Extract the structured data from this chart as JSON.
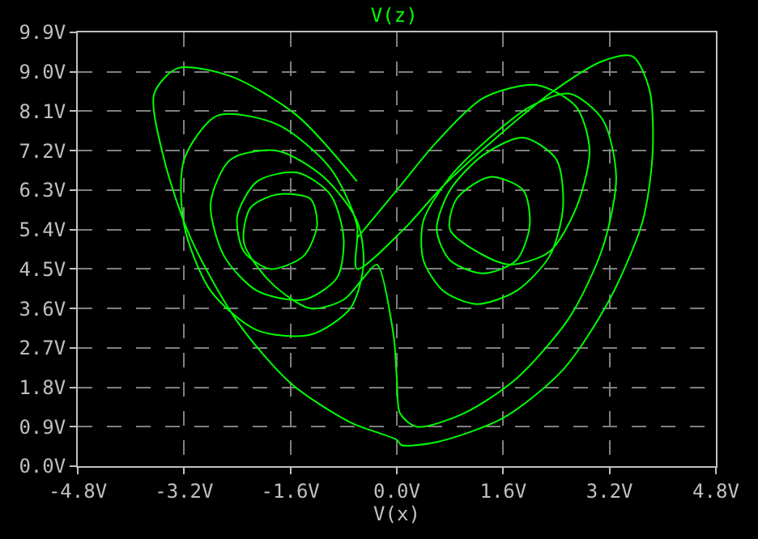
{
  "chart_data": {
    "type": "line",
    "title": "V(z)",
    "xlabel": "V(x)",
    "grid": true,
    "marker": "none",
    "line_style": "solid",
    "xlim": [
      -4.8,
      4.8
    ],
    "ylim": [
      0,
      9.9
    ],
    "xticks": [
      {
        "value": -4.8,
        "label": "-4.8V"
      },
      {
        "value": -3.2,
        "label": "-3.2V"
      },
      {
        "value": -1.6,
        "label": "-1.6V"
      },
      {
        "value": 0,
        "label": "0.0V"
      },
      {
        "value": 1.6,
        "label": "1.6V"
      },
      {
        "value": 3.2,
        "label": "3.2V"
      },
      {
        "value": 4.8,
        "label": "4.8V"
      }
    ],
    "yticks": [
      {
        "value": 0,
        "label": "0.0V"
      },
      {
        "value": 0.9,
        "label": "0.9V"
      },
      {
        "value": 1.8,
        "label": "1.8V"
      },
      {
        "value": 2.7,
        "label": "2.7V"
      },
      {
        "value": 3.6,
        "label": "3.6V"
      },
      {
        "value": 4.5,
        "label": "4.5V"
      },
      {
        "value": 5.4,
        "label": "5.4V"
      },
      {
        "value": 6.3,
        "label": "6.3V"
      },
      {
        "value": 7.2,
        "label": "7.2V"
      },
      {
        "value": 8.1,
        "label": "8.1V"
      },
      {
        "value": 9.0,
        "label": "9.0V"
      },
      {
        "value": 9.9,
        "label": "9.9V"
      }
    ],
    "series": [
      {
        "color": "#00ff00",
        "x": [
          -0.6,
          -1.5,
          -2.5,
          -3.3,
          -3.65,
          -3.5,
          -3.1,
          -2.4,
          -1.6,
          -0.7,
          0.0,
          0.07,
          0.6,
          1.6,
          2.5,
          3.2,
          3.7,
          3.85,
          3.8,
          3.55,
          3.1,
          2.3,
          1.5,
          0.7,
          0.1,
          -0.6,
          -0.6,
          -1.0,
          -1.8,
          -2.7,
          -3.2,
          -3.2,
          -2.8,
          -2.1,
          -1.3,
          -0.7,
          -0.5,
          -0.6,
          -1.1,
          -1.8,
          -2.5,
          -2.8,
          -2.6,
          -2.1,
          -1.4,
          -0.9,
          -0.8,
          -1.0,
          -1.5,
          -2.1,
          -2.4,
          -2.3,
          -1.9,
          -1.4,
          -1.2,
          -1.3,
          -1.8,
          -2.2,
          -2.3,
          -1.9,
          -1.3,
          -0.8,
          -0.5,
          -0.3,
          -0.05,
          0.0,
          0.05,
          0.3,
          1.0,
          1.8,
          2.6,
          3.1,
          3.3,
          3.1,
          2.6,
          2.0,
          1.4,
          0.8,
          0.4,
          0.4,
          0.7,
          1.2,
          1.8,
          2.3,
          2.5,
          2.4,
          1.9,
          1.3,
          0.8,
          0.6,
          0.8,
          1.3,
          1.8,
          2.0,
          1.9,
          1.4,
          0.9,
          0.8,
          1.2,
          1.7,
          2.3,
          2.7,
          2.9,
          2.7,
          2.1,
          1.3,
          0.6,
          0.0,
          -0.6
        ],
        "values": [
          6.5,
          8.0,
          8.9,
          9.08,
          8.5,
          7.0,
          5.2,
          3.3,
          1.9,
          1.0,
          0.6,
          0.48,
          0.55,
          1.1,
          2.2,
          3.8,
          5.6,
          7.2,
          8.6,
          9.35,
          9.25,
          8.5,
          7.5,
          6.4,
          5.4,
          4.5,
          5.5,
          6.8,
          7.8,
          8.0,
          7.0,
          5.5,
          4.0,
          3.1,
          3.0,
          3.6,
          4.6,
          5.6,
          6.6,
          7.2,
          7.0,
          6.0,
          4.8,
          4.0,
          3.8,
          4.3,
          5.2,
          6.2,
          6.7,
          6.5,
          5.7,
          4.9,
          4.5,
          4.8,
          5.5,
          6.1,
          6.2,
          5.9,
          5.1,
          4.2,
          3.6,
          3.8,
          4.3,
          4.6,
          3.0,
          2.0,
          1.2,
          0.9,
          1.2,
          2.0,
          3.4,
          5.0,
          6.6,
          7.9,
          8.5,
          8.2,
          7.5,
          6.6,
          5.6,
          4.7,
          4.0,
          3.7,
          4.0,
          4.8,
          5.9,
          7.0,
          7.5,
          7.1,
          6.3,
          5.4,
          4.7,
          4.4,
          4.7,
          5.5,
          6.3,
          6.6,
          6.1,
          5.4,
          4.9,
          4.6,
          4.9,
          5.9,
          7.2,
          8.2,
          8.7,
          8.4,
          7.4,
          6.3,
          5.2
        ]
      }
    ]
  }
}
